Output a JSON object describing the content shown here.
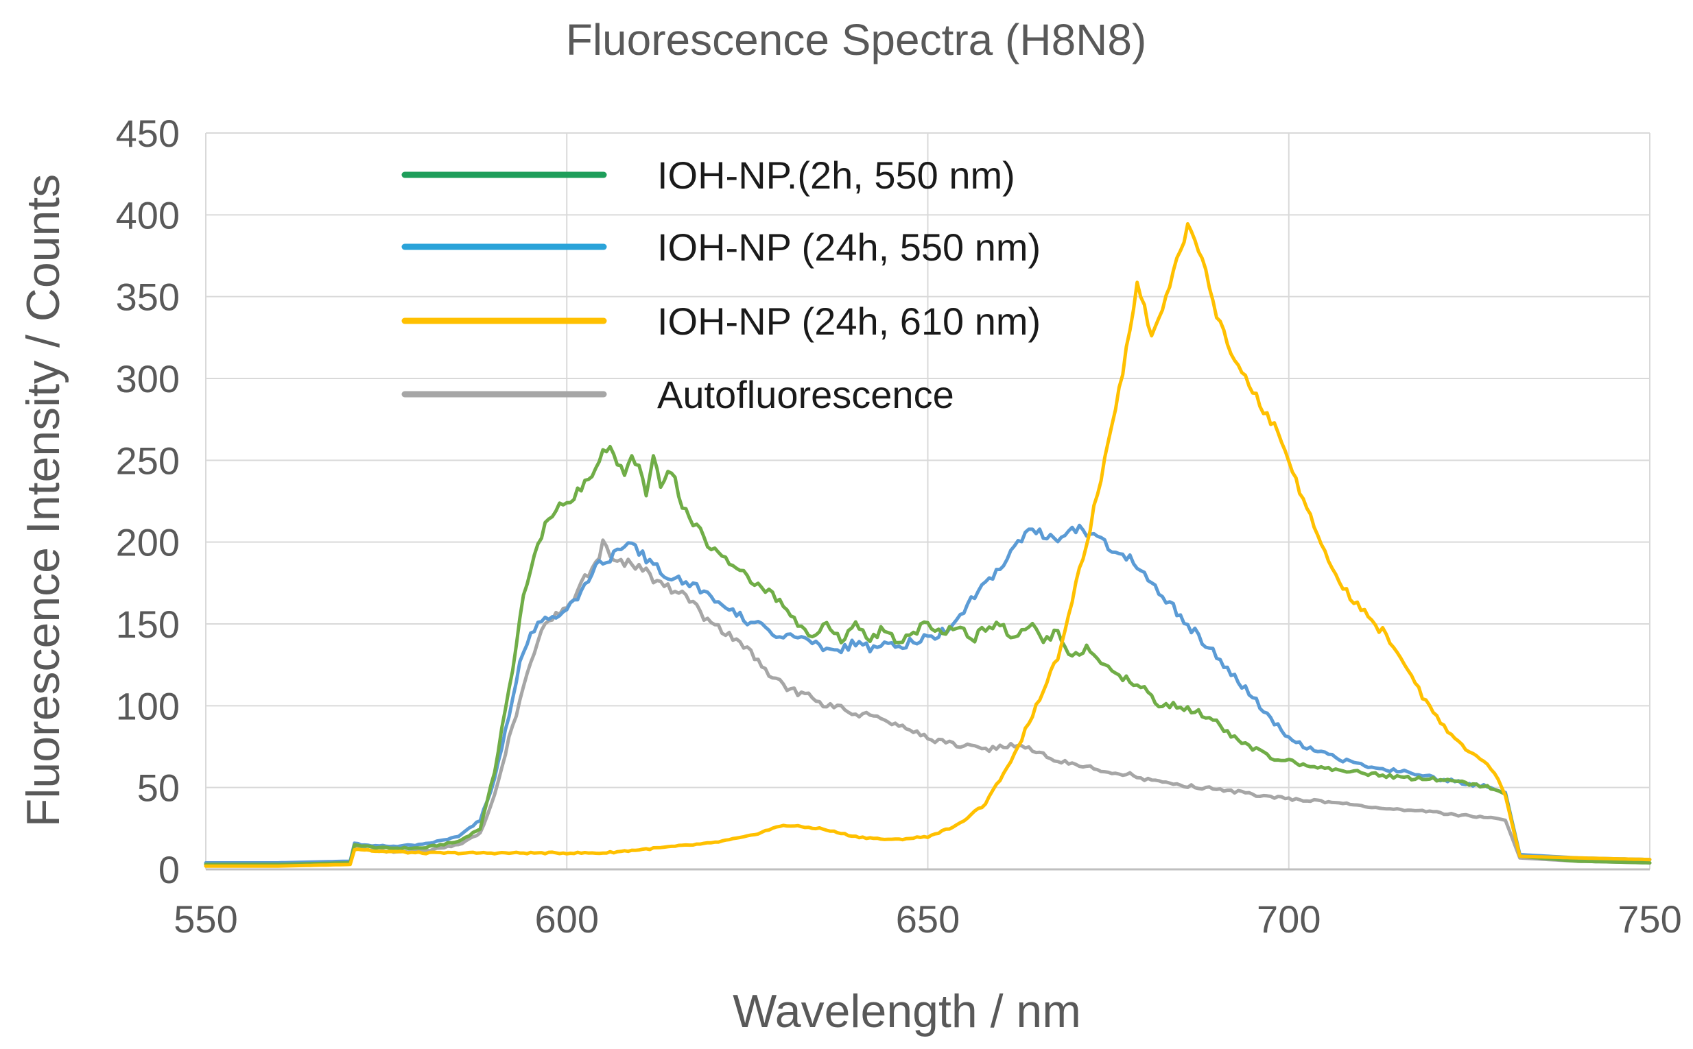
{
  "chart_data": {
    "type": "line",
    "title": "Fluorescence Spectra (H8N8)",
    "xlabel": "Wavelength / nm",
    "ylabel": "Fluorescence Intensity / Counts",
    "xlim": [
      550,
      750
    ],
    "ylim": [
      0,
      450
    ],
    "xticks": [
      550,
      600,
      650,
      700,
      750
    ],
    "yticks": [
      0,
      50,
      100,
      150,
      200,
      250,
      300,
      350,
      400,
      450
    ],
    "grid": true,
    "legend_position": "top-left",
    "series": [
      {
        "name": "IOH-NP.(2h, 550 nm)",
        "color": "#1e9e5a",
        "line_color": "#70ad47",
        "x": [
          550,
          560,
          570,
          570.6,
          572,
          575,
          580,
          585,
          588,
          590,
          592,
          594,
          596,
          598,
          600,
          602,
          604,
          605,
          606,
          607,
          608,
          609,
          610,
          611,
          612,
          613,
          614,
          615,
          616,
          618,
          620,
          622,
          624,
          626,
          628,
          630,
          632,
          634,
          636,
          638,
          640,
          642,
          644,
          646,
          648,
          650,
          652,
          654,
          656,
          658,
          660,
          662,
          664,
          666,
          668,
          670,
          672,
          674,
          676,
          678,
          680,
          682,
          684,
          686,
          688,
          690,
          692,
          694,
          696,
          698,
          700,
          704,
          708,
          712,
          716,
          720,
          724,
          728,
          729,
          730,
          732,
          740,
          750
        ],
        "y": [
          3,
          3,
          4,
          15,
          14,
          13,
          13,
          17,
          25,
          60,
          110,
          165,
          200,
          218,
          225,
          232,
          245,
          255,
          260,
          250,
          240,
          255,
          245,
          230,
          250,
          235,
          245,
          240,
          220,
          210,
          195,
          190,
          185,
          175,
          170,
          160,
          150,
          140,
          150,
          140,
          150,
          140,
          148,
          138,
          145,
          150,
          145,
          150,
          140,
          147,
          150,
          140,
          150,
          140,
          145,
          130,
          135,
          125,
          120,
          115,
          110,
          100,
          100,
          98,
          95,
          90,
          82,
          76,
          72,
          68,
          66,
          62,
          60,
          58,
          56,
          55,
          53,
          50,
          48,
          46,
          8,
          5,
          4
        ]
      },
      {
        "name": "IOH-NP (24h, 550 nm)",
        "color": "#2aa3d9",
        "line_color": "#5b9bd5",
        "x": [
          550,
          560,
          570,
          570.6,
          572,
          575,
          580,
          585,
          588,
          590,
          592,
          594,
          596,
          598,
          600,
          602,
          604,
          606,
          608,
          610,
          612,
          614,
          616,
          618,
          620,
          622,
          624,
          626,
          628,
          630,
          632,
          634,
          636,
          638,
          640,
          642,
          644,
          646,
          648,
          650,
          652,
          654,
          656,
          658,
          660,
          662,
          664,
          666,
          668,
          670,
          672,
          674,
          676,
          678,
          680,
          682,
          684,
          686,
          688,
          690,
          692,
          694,
          696,
          698,
          700,
          704,
          708,
          712,
          716,
          720,
          724,
          728,
          729,
          730,
          732,
          740,
          750
        ],
        "y": [
          4,
          4,
          5,
          16,
          15,
          14,
          15,
          20,
          30,
          55,
          95,
          135,
          150,
          155,
          160,
          170,
          185,
          190,
          198,
          195,
          185,
          180,
          175,
          172,
          165,
          160,
          155,
          150,
          145,
          142,
          140,
          138,
          135,
          135,
          138,
          135,
          138,
          135,
          140,
          142,
          145,
          150,
          165,
          175,
          185,
          195,
          210,
          205,
          200,
          210,
          205,
          200,
          195,
          190,
          180,
          170,
          160,
          150,
          140,
          130,
          120,
          110,
          100,
          90,
          80,
          72,
          66,
          62,
          60,
          56,
          53,
          50,
          48,
          47,
          9,
          7,
          6
        ]
      },
      {
        "name": "IOH-NP (24h, 610 nm)",
        "color": "#ffc000",
        "line_color": "#ffc000",
        "x": [
          550,
          560,
          570,
          570.6,
          572,
          575,
          580,
          585,
          590,
          595,
          600,
          605,
          610,
          615,
          620,
          625,
          630,
          635,
          640,
          645,
          650,
          653,
          655,
          658,
          660,
          662,
          664,
          666,
          668,
          670,
          672,
          674,
          676,
          678,
          679,
          681,
          683,
          684,
          686,
          688,
          690,
          692,
          694,
          696,
          698,
          700,
          702,
          704,
          706,
          708,
          710,
          712,
          714,
          716,
          718,
          720,
          722,
          724,
          726,
          728,
          729,
          730,
          732,
          740,
          750
        ],
        "y": [
          2,
          2,
          3,
          12,
          12,
          11,
          10,
          10,
          10,
          10,
          10,
          10,
          12,
          14,
          16,
          20,
          27,
          25,
          20,
          18,
          20,
          25,
          30,
          40,
          55,
          70,
          90,
          110,
          130,
          165,
          200,
          240,
          280,
          330,
          360,
          325,
          350,
          365,
          392,
          375,
          340,
          315,
          300,
          285,
          270,
          250,
          225,
          205,
          185,
          170,
          160,
          150,
          140,
          125,
          110,
          95,
          85,
          75,
          70,
          62,
          55,
          45,
          8,
          7,
          6
        ]
      },
      {
        "name": "Autofluorescence",
        "color": "#a6a6a6",
        "line_color": "#a6a6a6",
        "x": [
          550,
          560,
          570,
          570.6,
          572,
          575,
          580,
          585,
          588,
          590,
          592,
          594,
          596,
          598,
          600,
          602,
          604,
          605,
          606,
          608,
          610,
          612,
          614,
          616,
          618,
          620,
          622,
          624,
          626,
          628,
          630,
          632,
          634,
          636,
          638,
          640,
          642,
          644,
          646,
          648,
          650,
          652,
          654,
          656,
          658,
          660,
          662,
          664,
          666,
          668,
          670,
          672,
          674,
          676,
          678,
          680,
          684,
          688,
          692,
          696,
          700,
          704,
          708,
          712,
          716,
          720,
          724,
          728,
          729,
          730,
          732,
          740,
          750
        ],
        "y": [
          3,
          3,
          4,
          13,
          12,
          11,
          11,
          15,
          22,
          45,
          80,
          110,
          140,
          155,
          160,
          175,
          185,
          200,
          190,
          188,
          185,
          178,
          172,
          168,
          160,
          150,
          145,
          140,
          130,
          120,
          112,
          108,
          105,
          100,
          100,
          95,
          95,
          92,
          88,
          85,
          80,
          78,
          76,
          75,
          73,
          75,
          76,
          74,
          70,
          66,
          65,
          63,
          60,
          58,
          58,
          55,
          52,
          50,
          48,
          45,
          43,
          42,
          40,
          38,
          36,
          35,
          33,
          32,
          31,
          30,
          7,
          5,
          4
        ]
      }
    ]
  }
}
